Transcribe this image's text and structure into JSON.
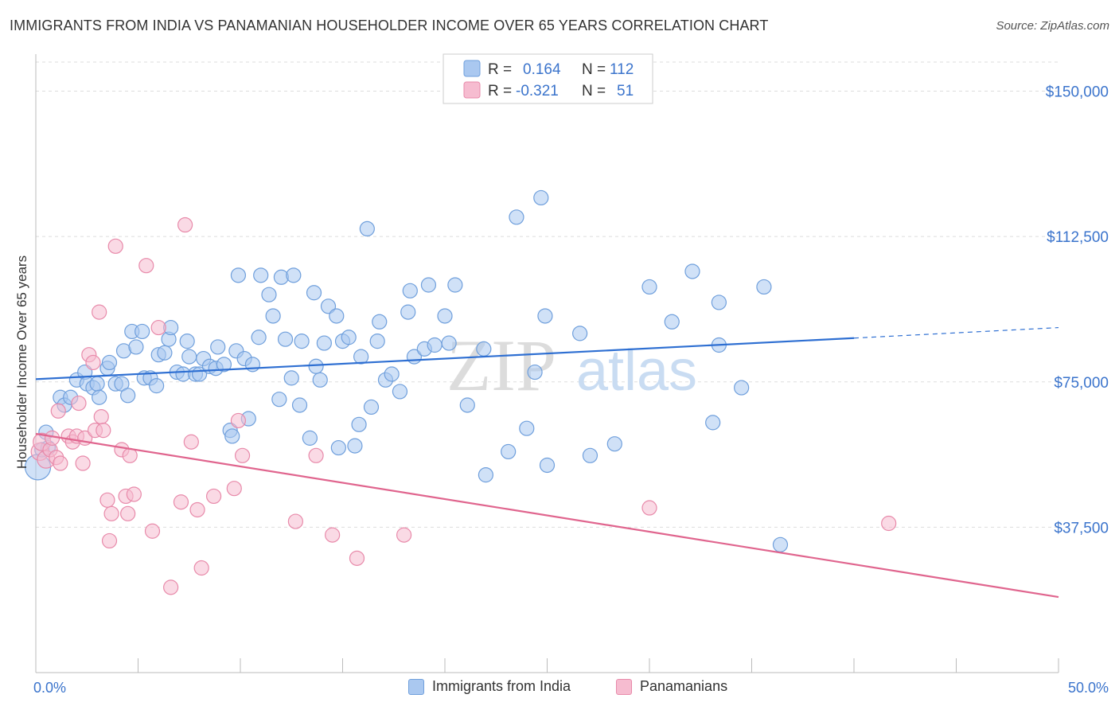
{
  "title": "IMMIGRANTS FROM INDIA VS PANAMANIAN HOUSEHOLDER INCOME OVER 65 YEARS CORRELATION CHART",
  "source": "Source: ZipAtlas.com",
  "watermark": {
    "zip": "ZIP",
    "atlas": "atlas"
  },
  "colors": {
    "blue_fill": "#aac8f0",
    "blue_stroke": "#6f9fdc",
    "blue_line": "#2e6fd2",
    "pink_fill": "#f6bcd0",
    "pink_stroke": "#e88aaa",
    "pink_line": "#e0658e",
    "axis_label": "#3b74cc",
    "grid": "#dddddd"
  },
  "legend_top": {
    "rows": [
      {
        "r_label": "R =",
        "r_value": "0.164",
        "n_label": "N =",
        "n_value": "112"
      },
      {
        "r_label": "R =",
        "r_value": "-0.321",
        "n_label": "N =",
        "n_value": "51"
      }
    ]
  },
  "legend_bottom": {
    "blue": "Immigrants from India",
    "pink": "Panamanians"
  },
  "chart_data": {
    "type": "scatter",
    "xlabel": "",
    "ylabel": "Householder Income Over 65 years",
    "xlim": [
      0,
      50
    ],
    "ylim": [
      0,
      157500
    ],
    "x_tick_labels": [
      {
        "x": 0,
        "label": "0.0%"
      },
      {
        "x": 50,
        "label": "50.0%"
      }
    ],
    "y_ticks": [
      {
        "y": 37500,
        "label": "$37,500"
      },
      {
        "y": 75000,
        "label": "$75,000"
      },
      {
        "y": 112500,
        "label": "$112,500"
      },
      {
        "y": 150000,
        "label": "$150,000"
      }
    ],
    "grid": "horizontal dashed",
    "legend_placement": "bottom-center",
    "series": [
      {
        "name": "Immigrants from India",
        "trend": {
          "x": [
            0,
            40,
            50
          ],
          "y": [
            75700,
            86300,
            89000
          ],
          "dashed_from_x": 40
        },
        "points": [
          [
            0.1,
            53000
          ],
          [
            0.3,
            57500
          ],
          [
            0.6,
            58000
          ],
          [
            0.5,
            62000
          ],
          [
            1.2,
            71000
          ],
          [
            1.4,
            69000
          ],
          [
            1.7,
            71000
          ],
          [
            2.0,
            75500
          ],
          [
            2.4,
            77500
          ],
          [
            2.5,
            74500
          ],
          [
            2.8,
            73500
          ],
          [
            3.0,
            74500
          ],
          [
            3.1,
            71000
          ],
          [
            3.5,
            78500
          ],
          [
            3.6,
            80000
          ],
          [
            3.9,
            74500
          ],
          [
            4.2,
            74500
          ],
          [
            4.3,
            83000
          ],
          [
            4.5,
            71500
          ],
          [
            4.7,
            88000
          ],
          [
            4.9,
            84000
          ],
          [
            5.2,
            88000
          ],
          [
            5.3,
            76000
          ],
          [
            5.6,
            76000
          ],
          [
            5.9,
            74000
          ],
          [
            6.0,
            82000
          ],
          [
            6.3,
            82500
          ],
          [
            6.5,
            86000
          ],
          [
            6.6,
            89000
          ],
          [
            6.9,
            77500
          ],
          [
            7.2,
            77000
          ],
          [
            7.4,
            85500
          ],
          [
            7.5,
            81500
          ],
          [
            7.8,
            77000
          ],
          [
            8.0,
            77000
          ],
          [
            8.2,
            81000
          ],
          [
            8.5,
            79000
          ],
          [
            8.8,
            78500
          ],
          [
            8.9,
            84000
          ],
          [
            9.2,
            79500
          ],
          [
            9.5,
            62500
          ],
          [
            9.6,
            61000
          ],
          [
            9.8,
            83000
          ],
          [
            9.9,
            102500
          ],
          [
            10.2,
            81000
          ],
          [
            10.4,
            65500
          ],
          [
            10.6,
            79500
          ],
          [
            10.9,
            86500
          ],
          [
            11.0,
            102500
          ],
          [
            11.4,
            97500
          ],
          [
            11.6,
            92000
          ],
          [
            11.9,
            70500
          ],
          [
            12.0,
            102000
          ],
          [
            12.2,
            86000
          ],
          [
            12.5,
            76000
          ],
          [
            12.6,
            102500
          ],
          [
            12.9,
            69000
          ],
          [
            13.0,
            85500
          ],
          [
            13.4,
            60500
          ],
          [
            13.6,
            98000
          ],
          [
            13.7,
            79000
          ],
          [
            13.9,
            75500
          ],
          [
            14.1,
            85000
          ],
          [
            14.3,
            94500
          ],
          [
            14.7,
            92000
          ],
          [
            14.8,
            58000
          ],
          [
            15.0,
            85500
          ],
          [
            15.3,
            86500
          ],
          [
            15.6,
            58500
          ],
          [
            15.8,
            64000
          ],
          [
            15.9,
            81500
          ],
          [
            16.2,
            114500
          ],
          [
            16.4,
            68500
          ],
          [
            16.7,
            85500
          ],
          [
            16.8,
            90500
          ],
          [
            17.1,
            75500
          ],
          [
            17.4,
            77000
          ],
          [
            17.8,
            72500
          ],
          [
            18.2,
            93000
          ],
          [
            18.3,
            98500
          ],
          [
            18.5,
            81500
          ],
          [
            19.0,
            83500
          ],
          [
            19.2,
            100000
          ],
          [
            19.5,
            84500
          ],
          [
            20.0,
            92000
          ],
          [
            20.2,
            85000
          ],
          [
            20.5,
            100000
          ],
          [
            21.1,
            69000
          ],
          [
            21.9,
            83500
          ],
          [
            22.0,
            51000
          ],
          [
            23.1,
            57000
          ],
          [
            23.5,
            117500
          ],
          [
            24.0,
            63000
          ],
          [
            24.4,
            77500
          ],
          [
            24.7,
            122500
          ],
          [
            24.9,
            92000
          ],
          [
            25.0,
            53500
          ],
          [
            26.6,
            87500
          ],
          [
            27.1,
            56000
          ],
          [
            28.3,
            59000
          ],
          [
            30.0,
            99500
          ],
          [
            31.1,
            90500
          ],
          [
            32.1,
            103500
          ],
          [
            33.1,
            64500
          ],
          [
            33.4,
            84500
          ],
          [
            33.4,
            95500
          ],
          [
            34.5,
            73500
          ],
          [
            35.6,
            99500
          ],
          [
            36.4,
            33000
          ]
        ]
      },
      {
        "name": "Panamanians",
        "trend": {
          "x": [
            0,
            50
          ],
          "y": [
            61600,
            19500
          ],
          "dashed_from_x": null
        },
        "points": [
          [
            0.2,
            57000
          ],
          [
            0.3,
            59500
          ],
          [
            0.5,
            55000
          ],
          [
            0.7,
            57500
          ],
          [
            0.8,
            60500
          ],
          [
            1.0,
            55500
          ],
          [
            1.1,
            67500
          ],
          [
            1.2,
            54000
          ],
          [
            1.6,
            61000
          ],
          [
            1.8,
            59500
          ],
          [
            2.0,
            61000
          ],
          [
            2.1,
            69500
          ],
          [
            2.3,
            54000
          ],
          [
            2.4,
            60500
          ],
          [
            2.6,
            82000
          ],
          [
            2.8,
            80000
          ],
          [
            2.9,
            62500
          ],
          [
            3.1,
            93000
          ],
          [
            3.2,
            66000
          ],
          [
            3.3,
            62500
          ],
          [
            3.5,
            44500
          ],
          [
            3.6,
            34000
          ],
          [
            3.7,
            41000
          ],
          [
            3.9,
            110000
          ],
          [
            4.2,
            57500
          ],
          [
            4.4,
            45500
          ],
          [
            4.5,
            41000
          ],
          [
            4.6,
            56000
          ],
          [
            4.8,
            46000
          ],
          [
            5.4,
            105000
          ],
          [
            5.7,
            36500
          ],
          [
            6.0,
            89000
          ],
          [
            6.6,
            22000
          ],
          [
            7.1,
            44000
          ],
          [
            7.3,
            115500
          ],
          [
            7.6,
            59500
          ],
          [
            7.9,
            42000
          ],
          [
            8.1,
            27000
          ],
          [
            8.7,
            45500
          ],
          [
            9.7,
            47500
          ],
          [
            9.9,
            65000
          ],
          [
            10.1,
            56000
          ],
          [
            12.7,
            39000
          ],
          [
            13.7,
            56000
          ],
          [
            14.5,
            35500
          ],
          [
            15.7,
            29500
          ],
          [
            18.0,
            35500
          ],
          [
            30.0,
            42500
          ],
          [
            41.7,
            38500
          ]
        ]
      }
    ]
  }
}
